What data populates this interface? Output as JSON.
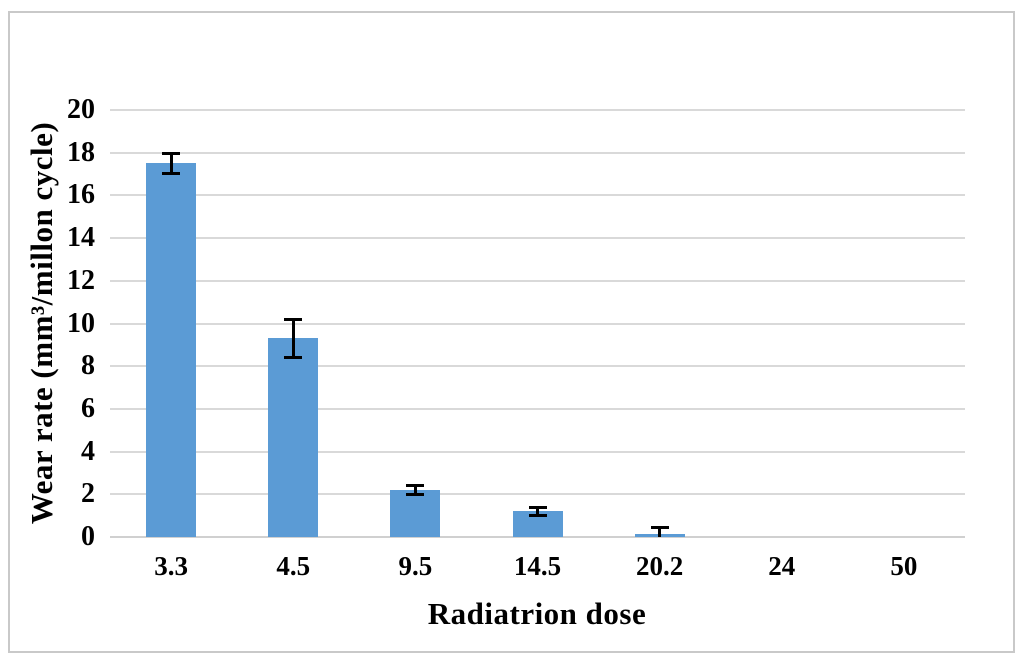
{
  "figure": {
    "background": "#ffffff",
    "border_color": "#c9c9c9"
  },
  "chart_data": {
    "type": "bar",
    "title": "",
    "xlabel": "Radiatrion dose",
    "ylabel": "Wear rate (mm³/millon cycle)",
    "categories": [
      "3.3",
      "4.5",
      "9.5",
      "14.5",
      "20.2",
      "24",
      "50"
    ],
    "values": [
      17.5,
      9.3,
      2.2,
      1.2,
      0.15,
      0,
      0
    ],
    "error_bars": [
      0.5,
      0.9,
      0.25,
      0.2,
      0.3,
      0,
      0
    ],
    "ylim": [
      0,
      20
    ],
    "yticks": [
      0,
      2,
      4,
      6,
      8,
      10,
      12,
      14,
      16,
      18,
      20
    ],
    "grid": true,
    "legend": "none",
    "bar_color": "#5b9bd5",
    "gridline_color": "#d9d9d9",
    "baseline_color": "#d0d0d0",
    "error_color": "#000000",
    "text_color": "#000000"
  }
}
